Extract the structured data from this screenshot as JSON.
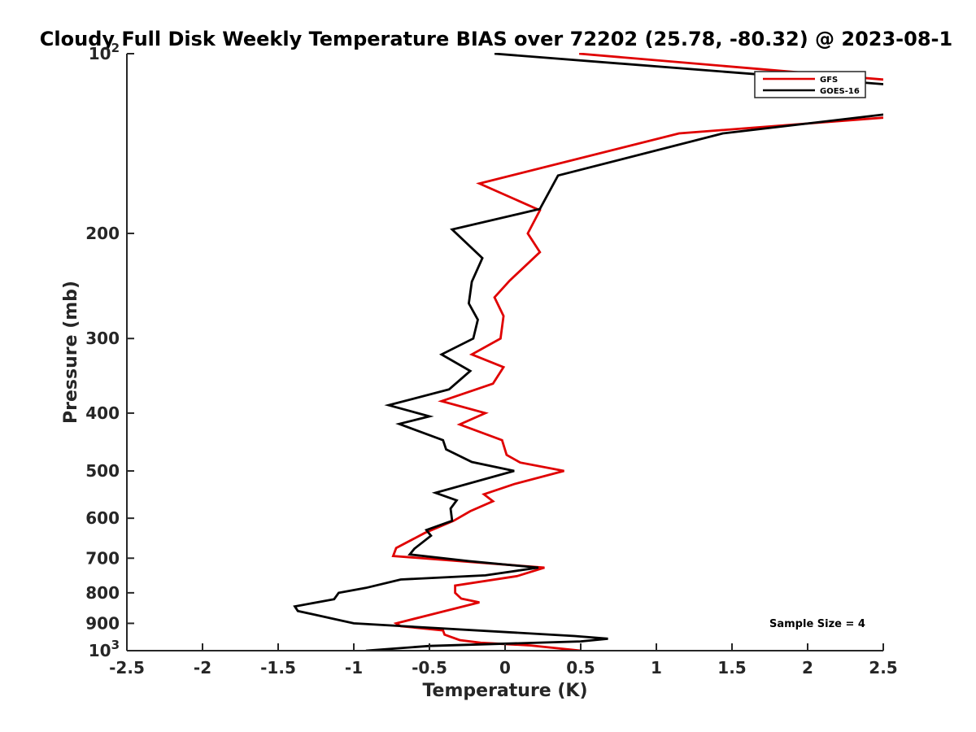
{
  "chart_data": {
    "type": "line",
    "title": "Cloudy Full Disk Weekly Temperature BIAS over 72202 (25.78, -80.32) @ 2023-08-1",
    "xlabel": "Temperature (K)",
    "ylabel": "Pressure (mb)",
    "xlim": [
      -2.5,
      2.5
    ],
    "ylim": [
      100,
      1000
    ],
    "y_scale": "log",
    "y_reversed": true,
    "x_ticks": [
      "-2.5",
      "-2",
      "-1.5",
      "-1",
      "-0.5",
      "0",
      "0.5",
      "1",
      "1.5",
      "2",
      "2.5"
    ],
    "y_ticks": [
      {
        "value": 100,
        "base": "10",
        "exp": "2"
      },
      {
        "value": 200,
        "label": "200"
      },
      {
        "value": 300,
        "label": "300"
      },
      {
        "value": 400,
        "label": "400"
      },
      {
        "value": 500,
        "label": "500"
      },
      {
        "value": 600,
        "label": "600"
      },
      {
        "value": 700,
        "label": "700"
      },
      {
        "value": 800,
        "label": "800"
      },
      {
        "value": 900,
        "label": "900"
      },
      {
        "value": 1000,
        "base": "10",
        "exp": "3"
      }
    ],
    "grid": false,
    "legend_position": "top-right",
    "annotation": "Sample Size = 4",
    "series": [
      {
        "name": "GFS",
        "color": "#e00000",
        "points": [
          [
            0.49,
            100
          ],
          [
            2.5,
            110.5
          ],
          null,
          [
            2.5,
            128
          ],
          [
            1.15,
            136
          ],
          [
            -0.17,
            165
          ],
          [
            0.23,
            183
          ],
          [
            0.15,
            200
          ],
          [
            0.23,
            215
          ],
          [
            0.03,
            240
          ],
          [
            -0.07,
            256
          ],
          [
            -0.01,
            275
          ],
          [
            -0.03,
            300
          ],
          [
            -0.22,
            319
          ],
          [
            -0.01,
            335
          ],
          [
            -0.08,
            357
          ],
          [
            -0.42,
            382
          ],
          [
            -0.13,
            400
          ],
          [
            -0.3,
            418
          ],
          [
            -0.02,
            444
          ],
          [
            0.01,
            470
          ],
          [
            0.1,
            484
          ],
          [
            0.39,
            500
          ],
          [
            0.06,
            526
          ],
          [
            -0.14,
            547
          ],
          [
            -0.08,
            562
          ],
          [
            -0.23,
            584
          ],
          [
            -0.34,
            606
          ],
          [
            -0.53,
            635
          ],
          [
            -0.72,
            673
          ],
          [
            -0.74,
            694
          ],
          [
            0.26,
            726
          ],
          [
            0.08,
            750
          ],
          [
            -0.33,
            778
          ],
          [
            -0.33,
            800
          ],
          [
            -0.29,
            818
          ],
          [
            -0.17,
            830
          ],
          [
            -0.49,
            870
          ],
          [
            -0.72,
            900
          ],
          [
            -0.69,
            910
          ],
          [
            -0.41,
            925
          ],
          [
            -0.4,
            940
          ],
          [
            -0.3,
            960
          ],
          [
            -0.16,
            970
          ],
          [
            0.17,
            980
          ],
          [
            0.5,
            1000
          ]
        ]
      },
      {
        "name": "GOES-16",
        "color": "#000000",
        "points": [
          [
            -0.07,
            100
          ],
          [
            2.5,
            112.5
          ],
          null,
          [
            2.5,
            126.5
          ],
          [
            1.44,
            136
          ],
          [
            0.35,
            160
          ],
          [
            0.23,
            182
          ],
          [
            -0.35,
            197
          ],
          [
            -0.15,
            220
          ],
          [
            -0.22,
            241
          ],
          [
            -0.24,
            262
          ],
          [
            -0.18,
            279
          ],
          [
            -0.21,
            300
          ],
          [
            -0.42,
            319
          ],
          [
            -0.23,
            340
          ],
          [
            -0.37,
            365
          ],
          [
            -0.77,
            388
          ],
          [
            -0.5,
            405
          ],
          [
            -0.7,
            417
          ],
          [
            -0.41,
            444
          ],
          [
            -0.39,
            460
          ],
          [
            -0.22,
            483
          ],
          [
            0.06,
            500
          ],
          [
            -0.46,
            544
          ],
          [
            -0.32,
            560
          ],
          [
            -0.36,
            578
          ],
          [
            -0.35,
            606
          ],
          [
            -0.52,
            628
          ],
          [
            -0.49,
            642
          ],
          [
            -0.6,
            675
          ],
          [
            -0.63,
            690
          ],
          [
            -0.24,
            708
          ],
          [
            0.22,
            726
          ],
          [
            -0.13,
            748
          ],
          [
            -0.69,
            760
          ],
          [
            -0.92,
            785
          ],
          [
            -1.1,
            800
          ],
          [
            -1.13,
            820
          ],
          [
            -1.39,
            843
          ],
          [
            -1.37,
            858
          ],
          [
            -1.0,
            900
          ],
          [
            0.46,
            945
          ],
          [
            0.68,
            955
          ],
          [
            0.5,
            965
          ],
          [
            -0.5,
            982
          ],
          [
            -0.92,
            1000
          ]
        ]
      }
    ]
  }
}
